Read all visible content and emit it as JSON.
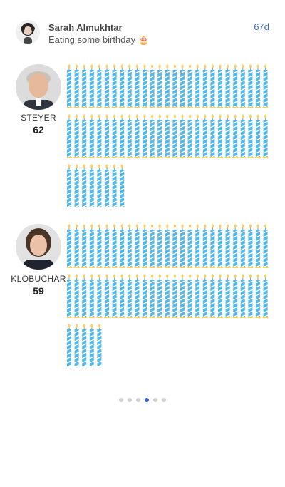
{
  "header": {
    "user_name": "Sarah Almukhtar",
    "status": "Eating some birthday 🎂",
    "time_ago": "67d"
  },
  "candidates": [
    {
      "name": "STEYER",
      "age": "62",
      "candle_count": 62
    },
    {
      "name": "KLOBUCHAR",
      "age": "59",
      "candle_count": 59
    }
  ],
  "pagination": {
    "total": 6,
    "active_index": 3
  },
  "colors": {
    "candle": "#53b8e6",
    "candle_stripe": "#ffffff",
    "flame": "#f4d35e",
    "active_dot": "#3a64c8"
  }
}
